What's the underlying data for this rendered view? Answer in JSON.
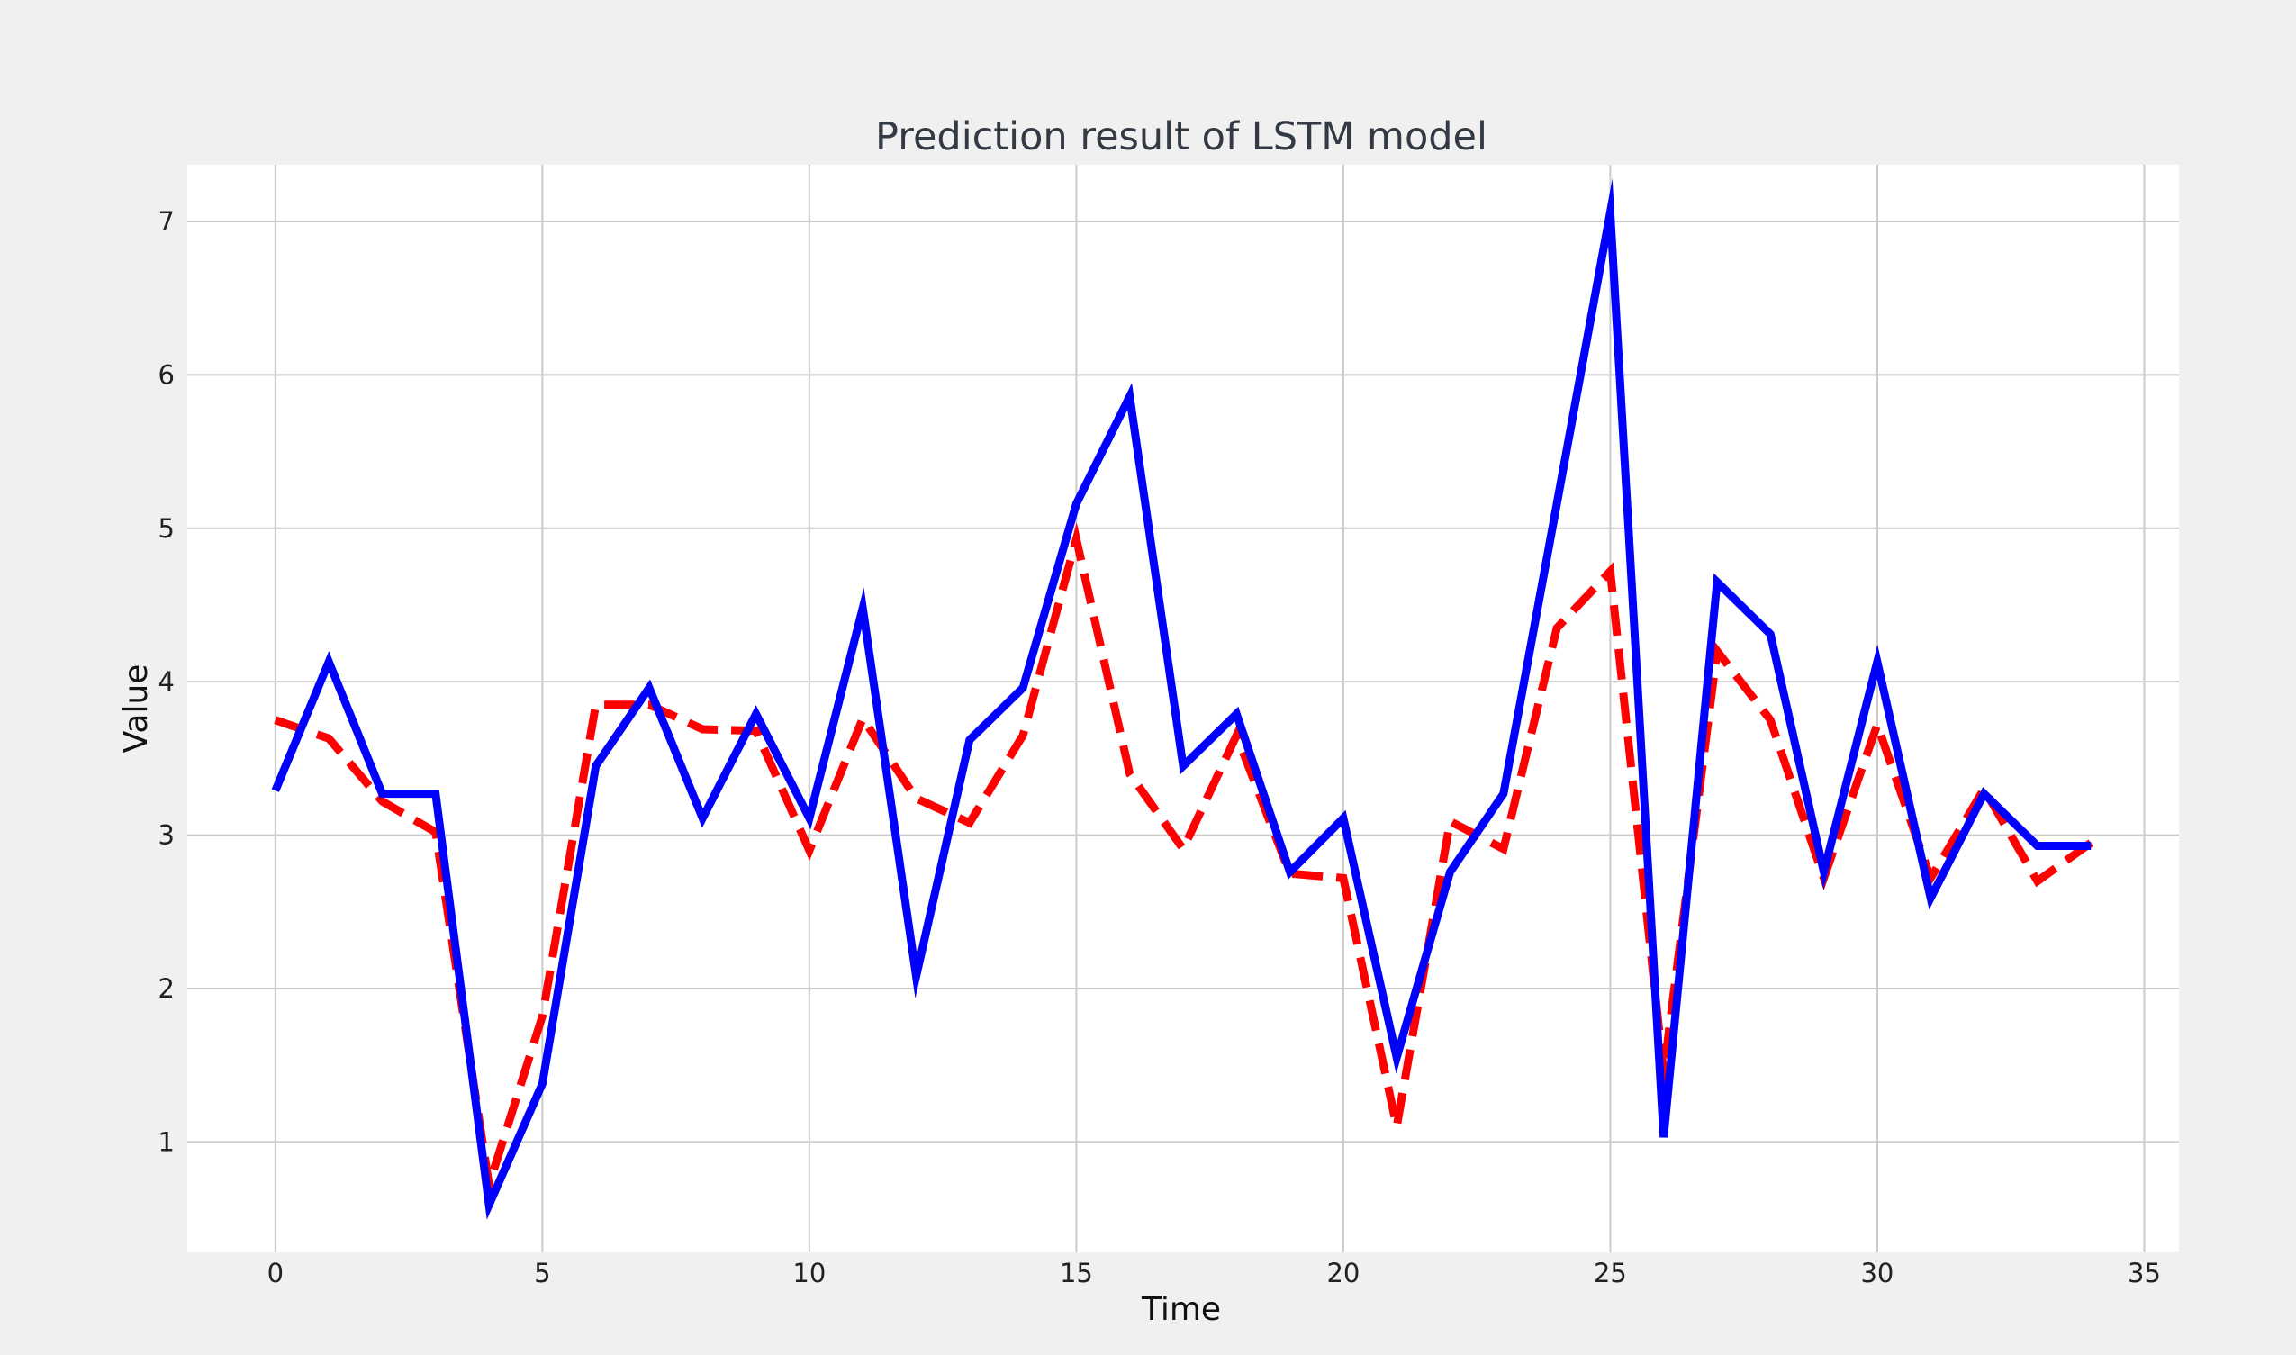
{
  "chart_data": {
    "type": "line",
    "title": "Prediction result of LSTM model",
    "xlabel": "Time",
    "ylabel": "Value",
    "xlim": [
      -1.65,
      35.65
    ],
    "ylim": [
      0.28,
      7.37
    ],
    "xticks": [
      0,
      5,
      10,
      15,
      20,
      25,
      30,
      35
    ],
    "yticks": [
      1,
      2,
      3,
      4,
      5,
      6,
      7
    ],
    "grid": true,
    "legend": "none",
    "series": [
      {
        "color": "#ff0000",
        "line_style": "dashed",
        "x": [
          0,
          1,
          2,
          3,
          4,
          5,
          6,
          7,
          8,
          9,
          10,
          11,
          12,
          13,
          14,
          15,
          16,
          17,
          18,
          19,
          20,
          21,
          22,
          23,
          24,
          25,
          26,
          27,
          28,
          29,
          30,
          31,
          32,
          33,
          34
        ],
        "values": [
          3.75,
          3.63,
          3.22,
          3.02,
          0.72,
          1.82,
          3.85,
          3.85,
          3.69,
          3.68,
          2.9,
          3.76,
          3.24,
          3.08,
          3.65,
          4.93,
          3.4,
          2.91,
          3.65,
          2.75,
          2.72,
          1.1,
          3.09,
          2.91,
          4.35,
          4.72,
          1.45,
          4.2,
          3.75,
          2.72,
          3.72,
          2.72,
          3.3,
          2.7,
          2.95
        ]
      },
      {
        "color": "#0000ff",
        "line_style": "solid",
        "x": [
          0,
          1,
          2,
          3,
          4,
          5,
          6,
          7,
          8,
          9,
          10,
          11,
          12,
          13,
          14,
          15,
          16,
          17,
          18,
          19,
          20,
          21,
          22,
          23,
          24,
          25,
          26,
          27,
          28,
          29,
          30,
          31,
          32,
          33,
          34
        ],
        "values": [
          3.29,
          4.13,
          3.27,
          3.27,
          0.59,
          1.38,
          3.45,
          3.96,
          3.11,
          3.79,
          3.11,
          4.48,
          2.08,
          3.62,
          3.96,
          5.16,
          5.86,
          3.45,
          3.79,
          2.76,
          3.11,
          1.55,
          2.76,
          3.27,
          5.16,
          7.06,
          1.03,
          4.65,
          4.31,
          2.76,
          4.13,
          2.59,
          3.27,
          2.93,
          2.93
        ]
      }
    ]
  }
}
